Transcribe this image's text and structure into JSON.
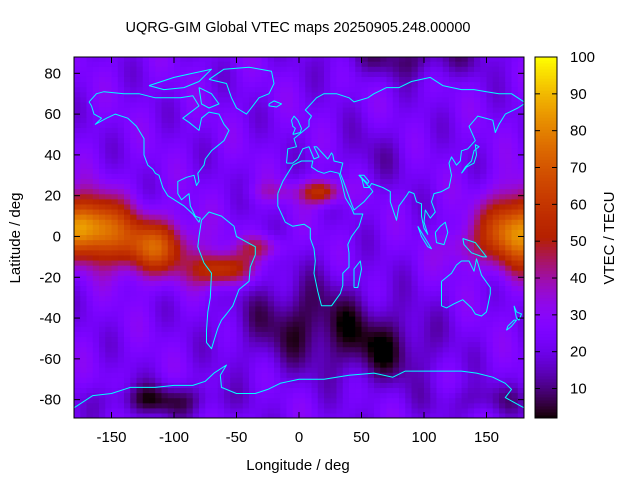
{
  "chart_data": {
    "type": "heatmap",
    "title": "UQRG-GIM Global VTEC maps 20250905.248.00000",
    "xlabel": "Longitude / deg",
    "ylabel": "Latitude / deg",
    "colorbar_label": "VTEC / TECU",
    "xlim": [
      -180,
      180
    ],
    "ylim": [
      -89,
      88
    ],
    "x_ticks": [
      -150,
      -100,
      -50,
      0,
      50,
      100,
      150
    ],
    "x_tick_labels": [
      "-150",
      "-100",
      "-50",
      "0",
      "50",
      "100",
      "150"
    ],
    "y_ticks": [
      -80,
      -60,
      -40,
      -20,
      0,
      20,
      40,
      60,
      80
    ],
    "y_tick_labels": [
      "-80",
      "-60",
      "-40",
      "-20",
      "0",
      "20",
      "40",
      "60",
      "80"
    ],
    "color_range": [
      2,
      100
    ],
    "colorbar_ticks": [
      10,
      20,
      30,
      40,
      50,
      60,
      70,
      80,
      90,
      100
    ],
    "colorbar_tick_labels": [
      "10",
      "20",
      "30",
      "40",
      "50",
      "60",
      "70",
      "80",
      "90",
      "100"
    ],
    "colormap": "gnuplot (black-purple-red-orange-yellow)",
    "grid": false,
    "coastline_color": "#00ffff",
    "features": [
      {
        "desc": "equatorial crest west",
        "lon": -170,
        "lat": 5,
        "vtec": 88
      },
      {
        "desc": "equatorial crest south america",
        "lon": -120,
        "lat": -8,
        "vtec": 80
      },
      {
        "desc": "equatorial crest north africa",
        "lon": 15,
        "lat": 22,
        "vtec": 60
      },
      {
        "desc": "equatorial crest east",
        "lon": 172,
        "lat": 2,
        "vtec": 85
      },
      {
        "desc": "south atlantic trough",
        "lon": 0,
        "lat": -40,
        "vtec": 6
      },
      {
        "desc": "antarctic low",
        "lon": -110,
        "lat": -80,
        "vtec": 5
      }
    ]
  }
}
